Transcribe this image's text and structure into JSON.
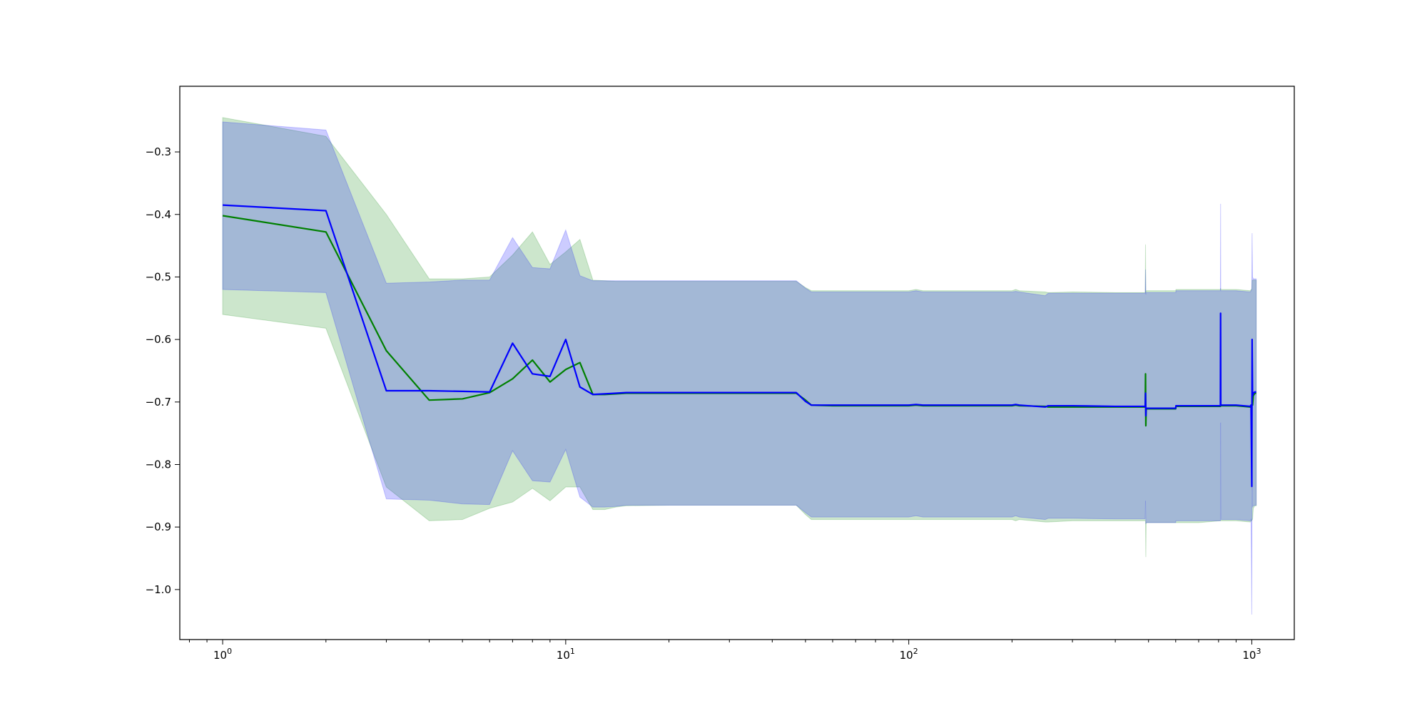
{
  "chart_data": {
    "type": "line",
    "xscale": "log",
    "xlim": [
      0.75,
      1330
    ],
    "ylim": [
      -1.08,
      -0.195
    ],
    "grid": false,
    "legend": "none",
    "x_ticks": [
      {
        "value": 1,
        "base": "10",
        "exp": "0"
      },
      {
        "value": 10,
        "base": "10",
        "exp": "1"
      },
      {
        "value": 100,
        "base": "10",
        "exp": "2"
      },
      {
        "value": 1000,
        "base": "10",
        "exp": "3"
      }
    ],
    "y_ticks": [
      -0.3,
      -0.4,
      -0.5,
      -0.6,
      -0.7,
      -0.8,
      -0.9,
      -1.0
    ],
    "y_tick_labels": [
      "−0.3",
      "−0.4",
      "−0.5",
      "−0.6",
      "−0.7",
      "−0.8",
      "−0.9",
      "−1.0"
    ],
    "series": [
      {
        "color": "#008000",
        "band_color": "#008000",
        "band_opacity": 0.2,
        "x": [
          1,
          2,
          3,
          4,
          5,
          6,
          7,
          8,
          9,
          10,
          11,
          12,
          13,
          14,
          15,
          20,
          30,
          47,
          50,
          52,
          60,
          100,
          105,
          110,
          120,
          150,
          200,
          205,
          210,
          250,
          255,
          300,
          400,
          489,
          490,
          491,
          492,
          493,
          500,
          600,
          601,
          700,
          810,
          811,
          812,
          815,
          900,
          990,
          995,
          1000,
          1002,
          1005,
          1010,
          1020,
          1030
        ],
        "y": [
          -0.402,
          -0.428,
          -0.618,
          -0.697,
          -0.695,
          -0.685,
          -0.663,
          -0.633,
          -0.668,
          -0.648,
          -0.637,
          -0.688,
          -0.688,
          -0.687,
          -0.686,
          -0.686,
          -0.686,
          -0.686,
          -0.697,
          -0.705,
          -0.706,
          -0.706,
          -0.705,
          -0.706,
          -0.706,
          -0.706,
          -0.706,
          -0.705,
          -0.706,
          -0.707,
          -0.708,
          -0.708,
          -0.708,
          -0.708,
          -0.655,
          -0.738,
          -0.712,
          -0.711,
          -0.711,
          -0.711,
          -0.707,
          -0.707,
          -0.707,
          -0.705,
          -0.706,
          -0.706,
          -0.706,
          -0.708,
          -0.705,
          -0.706,
          -0.705,
          -0.705,
          -0.69,
          -0.686,
          -0.686
        ],
        "upper": [
          -0.245,
          -0.275,
          -0.4,
          -0.503,
          -0.503,
          -0.5,
          -0.465,
          -0.428,
          -0.48,
          -0.46,
          -0.44,
          -0.505,
          -0.506,
          -0.507,
          -0.507,
          -0.507,
          -0.507,
          -0.507,
          -0.517,
          -0.522,
          -0.522,
          -0.522,
          -0.52,
          -0.522,
          -0.522,
          -0.522,
          -0.522,
          -0.52,
          -0.522,
          -0.524,
          -0.525,
          -0.524,
          -0.525,
          -0.525,
          -0.448,
          -0.525,
          -0.522,
          -0.522,
          -0.522,
          -0.522,
          -0.52,
          -0.52,
          -0.52,
          -0.518,
          -0.52,
          -0.52,
          -0.52,
          -0.522,
          -0.52,
          -0.52,
          -0.505,
          -0.505,
          -0.505,
          -0.505,
          -0.505
        ],
        "lower": [
          -0.56,
          -0.582,
          -0.836,
          -0.89,
          -0.888,
          -0.87,
          -0.86,
          -0.838,
          -0.858,
          -0.836,
          -0.836,
          -0.872,
          -0.872,
          -0.868,
          -0.866,
          -0.865,
          -0.865,
          -0.865,
          -0.88,
          -0.888,
          -0.888,
          -0.888,
          -0.888,
          -0.888,
          -0.888,
          -0.888,
          -0.888,
          -0.89,
          -0.888,
          -0.892,
          -0.892,
          -0.89,
          -0.89,
          -0.89,
          -0.89,
          -0.948,
          -0.895,
          -0.893,
          -0.893,
          -0.893,
          -0.893,
          -0.893,
          -0.89,
          -0.89,
          -0.89,
          -0.89,
          -0.89,
          -0.892,
          -0.89,
          -0.89,
          -0.888,
          -0.888,
          -0.87,
          -0.866,
          -0.866
        ]
      },
      {
        "color": "#0000ff",
        "band_color": "#0000ff",
        "band_opacity": 0.2,
        "x": [
          1,
          2,
          3,
          4,
          5,
          6,
          7,
          8,
          9,
          10,
          11,
          12,
          13,
          14,
          15,
          20,
          30,
          47,
          50,
          52,
          60,
          100,
          105,
          110,
          120,
          150,
          200,
          205,
          210,
          250,
          255,
          300,
          400,
          489,
          490,
          491,
          492,
          493,
          500,
          600,
          601,
          700,
          810,
          811,
          812,
          815,
          900,
          990,
          995,
          1000,
          1002,
          1005,
          1010,
          1020,
          1030
        ],
        "y": [
          -0.385,
          -0.394,
          -0.682,
          -0.682,
          -0.683,
          -0.684,
          -0.606,
          -0.655,
          -0.659,
          -0.6,
          -0.676,
          -0.688,
          -0.687,
          -0.686,
          -0.685,
          -0.685,
          -0.685,
          -0.685,
          -0.699,
          -0.705,
          -0.705,
          -0.705,
          -0.704,
          -0.705,
          -0.705,
          -0.705,
          -0.705,
          -0.704,
          -0.705,
          -0.708,
          -0.706,
          -0.706,
          -0.707,
          -0.707,
          -0.686,
          -0.722,
          -0.71,
          -0.71,
          -0.71,
          -0.71,
          -0.706,
          -0.706,
          -0.706,
          -0.558,
          -0.705,
          -0.705,
          -0.705,
          -0.707,
          -0.705,
          -0.835,
          -0.6,
          -0.69,
          -0.686,
          -0.684,
          -0.684
        ],
        "upper": [
          -0.252,
          -0.265,
          -0.51,
          -0.508,
          -0.505,
          -0.505,
          -0.437,
          -0.485,
          -0.487,
          -0.425,
          -0.498,
          -0.506,
          -0.506,
          -0.506,
          -0.506,
          -0.506,
          -0.506,
          -0.506,
          -0.518,
          -0.524,
          -0.524,
          -0.524,
          -0.522,
          -0.524,
          -0.524,
          -0.524,
          -0.524,
          -0.523,
          -0.524,
          -0.53,
          -0.526,
          -0.526,
          -0.526,
          -0.526,
          -0.488,
          -0.528,
          -0.525,
          -0.525,
          -0.525,
          -0.525,
          -0.522,
          -0.522,
          -0.522,
          -0.383,
          -0.522,
          -0.522,
          -0.522,
          -0.524,
          -0.522,
          -0.52,
          -0.43,
          -0.5,
          -0.503,
          -0.503,
          -0.503
        ],
        "lower": [
          -0.52,
          -0.525,
          -0.855,
          -0.857,
          -0.863,
          -0.864,
          -0.778,
          -0.826,
          -0.828,
          -0.776,
          -0.852,
          -0.868,
          -0.868,
          -0.867,
          -0.865,
          -0.865,
          -0.865,
          -0.865,
          -0.877,
          -0.884,
          -0.884,
          -0.884,
          -0.882,
          -0.884,
          -0.884,
          -0.884,
          -0.884,
          -0.882,
          -0.884,
          -0.888,
          -0.886,
          -0.886,
          -0.887,
          -0.887,
          -0.858,
          -0.895,
          -0.893,
          -0.893,
          -0.893,
          -0.893,
          -0.89,
          -0.89,
          -0.89,
          -0.733,
          -0.888,
          -0.888,
          -0.888,
          -0.89,
          -0.888,
          -1.04,
          -0.77,
          -0.868,
          -0.866,
          -0.865,
          -0.865
        ]
      }
    ]
  }
}
